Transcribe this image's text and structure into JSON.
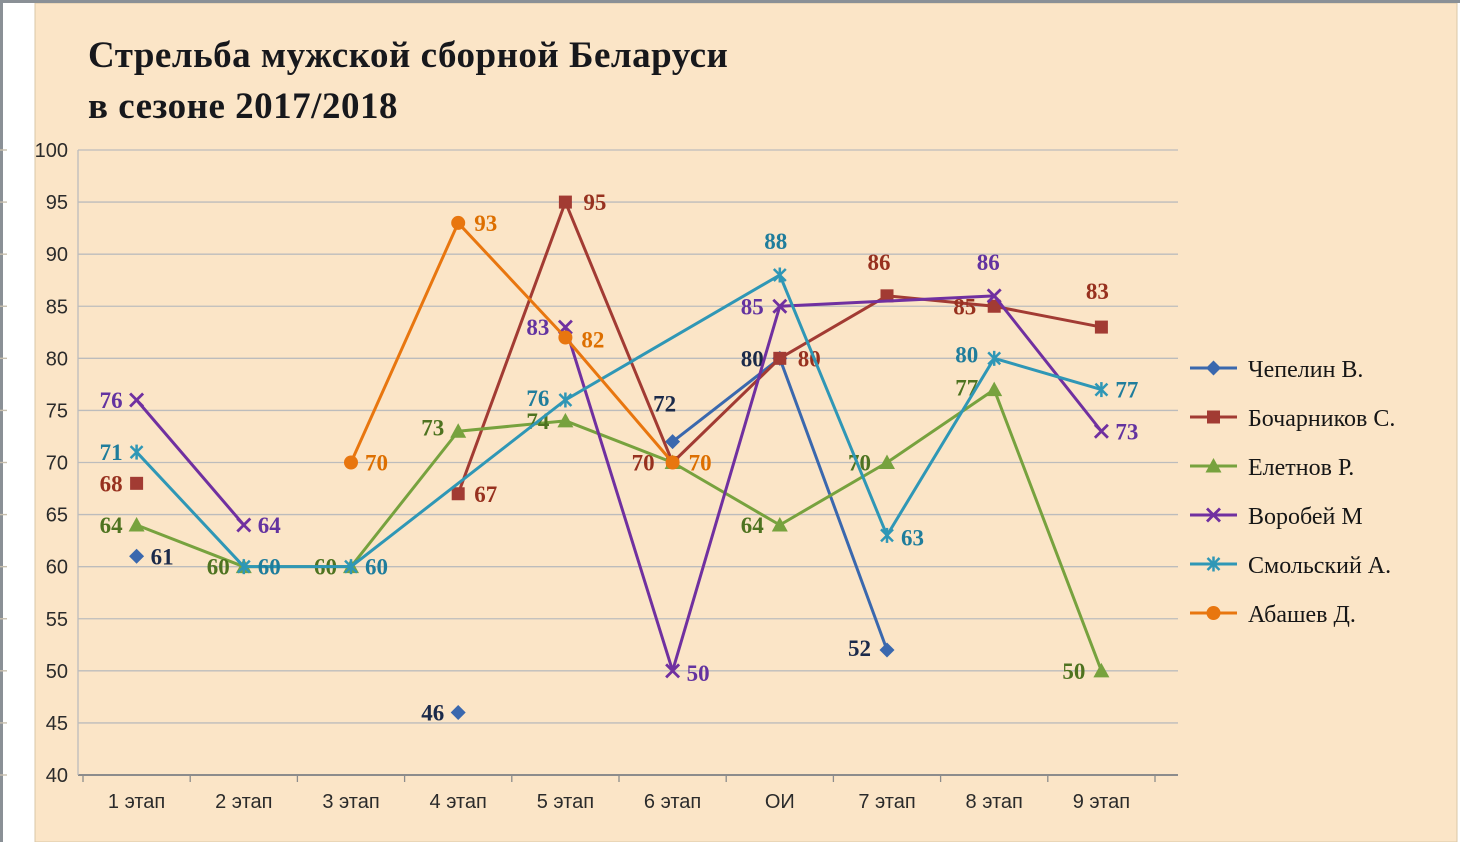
{
  "page": {
    "background": "#ffffff",
    "top_border_color": "#8a9096",
    "left_border_color": "#8a9096"
  },
  "chart_data": {
    "type": "line",
    "title_lines": [
      "Стрельба мужской сборной Беларуси",
      "в сезоне 2017/2018"
    ],
    "title_color": "#17181c",
    "plot_background": "#fbe5c7",
    "plot_border_color": "#d9c7a7",
    "grid": true,
    "grid_color": "#bcbcbc",
    "axis_color": "#8c8c8c",
    "tick_label_color": "#2b2b2b",
    "legend_position": "right",
    "legend_text_color": "#161616",
    "ylim": [
      40,
      100
    ],
    "ytick_step": 5,
    "categories": [
      "1 этап",
      "2 этап",
      "3 этап",
      "4 этап",
      "5 этап",
      "6 этап",
      "ОИ",
      "7 этап",
      "8 этап",
      "9 этап"
    ],
    "series": [
      {
        "name": "Чепелин В.",
        "marker": "diamond",
        "line_color": "#3a68ae",
        "label_color": "#1b2a4a",
        "points": [
          {
            "x": 0,
            "v": 61,
            "seg": 0,
            "anchor": "start",
            "dx": 14,
            "dy": 8
          },
          {
            "x": 3,
            "v": 46,
            "seg": 1,
            "anchor": "end",
            "dx": -14,
            "dy": 8
          },
          {
            "x": 5,
            "v": 72,
            "seg": 2,
            "anchor": "middle",
            "dx": -8,
            "dy": -30
          },
          {
            "x": 6,
            "v": 80,
            "seg": 2,
            "anchor": "end",
            "dx": -16,
            "dy": 8
          },
          {
            "x": 7,
            "v": 52,
            "seg": 2,
            "anchor": "end",
            "dx": -16,
            "dy": 6
          }
        ]
      },
      {
        "name": "Бочарников С.",
        "marker": "square",
        "line_color": "#a23b33",
        "label_color": "#97311f",
        "points": [
          {
            "x": 0,
            "v": 68,
            "seg": 0,
            "anchor": "end",
            "dx": -14,
            "dy": 8
          },
          {
            "x": 3,
            "v": 67,
            "seg": 1,
            "anchor": "start",
            "dx": 16,
            "dy": 8
          },
          {
            "x": 4,
            "v": 95,
            "seg": 1,
            "anchor": "start",
            "dx": 18,
            "dy": 8
          },
          {
            "x": 5,
            "v": 70,
            "seg": 1,
            "anchor": "end",
            "dx": -18,
            "dy": 8
          },
          {
            "x": 6,
            "v": 80,
            "seg": 1,
            "anchor": "start",
            "dx": 18,
            "dy": 8
          },
          {
            "x": 7,
            "v": 86,
            "seg": 1,
            "anchor": "middle",
            "dx": -8,
            "dy": -26
          },
          {
            "x": 8,
            "v": 85,
            "seg": 1,
            "anchor": "end",
            "dx": -18,
            "dy": 8
          },
          {
            "x": 9,
            "v": 83,
            "seg": 1,
            "anchor": "middle",
            "dx": -4,
            "dy": -28
          }
        ]
      },
      {
        "name": "Елетнов Р.",
        "marker": "triangle",
        "line_color": "#77a23e",
        "label_color": "#4e7320",
        "points": [
          {
            "x": 0,
            "v": 64,
            "seg": 0,
            "anchor": "end",
            "dx": -14,
            "dy": 8
          },
          {
            "x": 1,
            "v": 60,
            "seg": 0,
            "anchor": "end",
            "dx": -14,
            "dy": 8
          },
          {
            "x": 2,
            "v": 60,
            "seg": 0,
            "anchor": "end",
            "dx": -14,
            "dy": 8
          },
          {
            "x": 3,
            "v": 73,
            "seg": 0,
            "anchor": "end",
            "dx": -14,
            "dy": 4
          },
          {
            "x": 4,
            "v": 74,
            "seg": 0,
            "anchor": "end",
            "dx": -16,
            "dy": 8
          },
          {
            "x": 5,
            "v": 70,
            "seg": 0,
            "label": false
          },
          {
            "x": 6,
            "v": 64,
            "seg": 0,
            "anchor": "end",
            "dx": -16,
            "dy": 8
          },
          {
            "x": 7,
            "v": 70,
            "seg": 0,
            "anchor": "end",
            "dx": -16,
            "dy": 8
          },
          {
            "x": 8,
            "v": 77,
            "seg": 0,
            "anchor": "end",
            "dx": -16,
            "dy": 6
          },
          {
            "x": 9,
            "v": 50,
            "seg": 0,
            "anchor": "end",
            "dx": -16,
            "dy": 8
          }
        ]
      },
      {
        "name": "Воробей М",
        "marker": "xmark",
        "line_color": "#7030a0",
        "label_color": "#6333a0",
        "points": [
          {
            "x": 0,
            "v": 76,
            "seg": 0,
            "anchor": "end",
            "dx": -14,
            "dy": 8
          },
          {
            "x": 1,
            "v": 64,
            "seg": 0,
            "anchor": "start",
            "dx": 14,
            "dy": 8
          },
          {
            "x": 4,
            "v": 83,
            "seg": 1,
            "anchor": "end",
            "dx": -16,
            "dy": 8
          },
          {
            "x": 5,
            "v": 50,
            "seg": 1,
            "anchor": "start",
            "dx": 14,
            "dy": 10
          },
          {
            "x": 6,
            "v": 85,
            "seg": 1,
            "anchor": "end",
            "dx": -16,
            "dy": 8
          },
          {
            "x": 8,
            "v": 86,
            "seg": 1,
            "anchor": "middle",
            "dx": -6,
            "dy": -26
          },
          {
            "x": 9,
            "v": 73,
            "seg": 1,
            "anchor": "start",
            "dx": 14,
            "dy": 8
          }
        ]
      },
      {
        "name": "Смольский А.",
        "marker": "asterisk",
        "line_color": "#2f97b6",
        "label_color": "#1f7d9c",
        "points": [
          {
            "x": 0,
            "v": 71,
            "seg": 0,
            "anchor": "end",
            "dx": -14,
            "dy": 8
          },
          {
            "x": 1,
            "v": 60,
            "seg": 0,
            "anchor": "start",
            "dx": 14,
            "dy": 8
          },
          {
            "x": 2,
            "v": 60,
            "seg": 0,
            "anchor": "start",
            "dx": 14,
            "dy": 8
          },
          {
            "x": 4,
            "v": 76,
            "seg": 0,
            "anchor": "end",
            "dx": -16,
            "dy": 6
          },
          {
            "x": 6,
            "v": 88,
            "seg": 0,
            "anchor": "middle",
            "dx": -4,
            "dy": -26
          },
          {
            "x": 7,
            "v": 63,
            "seg": 0,
            "anchor": "start",
            "dx": 14,
            "dy": 10
          },
          {
            "x": 8,
            "v": 80,
            "seg": 0,
            "anchor": "end",
            "dx": -16,
            "dy": 4
          },
          {
            "x": 9,
            "v": 77,
            "seg": 0,
            "anchor": "start",
            "dx": 14,
            "dy": 8
          }
        ]
      },
      {
        "name": "Абашев Д.",
        "marker": "circle",
        "line_color": "#e8760f",
        "label_color": "#dd6f00",
        "points": [
          {
            "x": 2,
            "v": 70,
            "seg": 0,
            "anchor": "start",
            "dx": 14,
            "dy": 8
          },
          {
            "x": 3,
            "v": 93,
            "seg": 0,
            "anchor": "start",
            "dx": 16,
            "dy": 8
          },
          {
            "x": 4,
            "v": 82,
            "seg": 0,
            "anchor": "start",
            "dx": 16,
            "dy": 10
          },
          {
            "x": 5,
            "v": 70,
            "seg": 0,
            "anchor": "start",
            "dx": 16,
            "dy": 8
          }
        ]
      }
    ]
  }
}
